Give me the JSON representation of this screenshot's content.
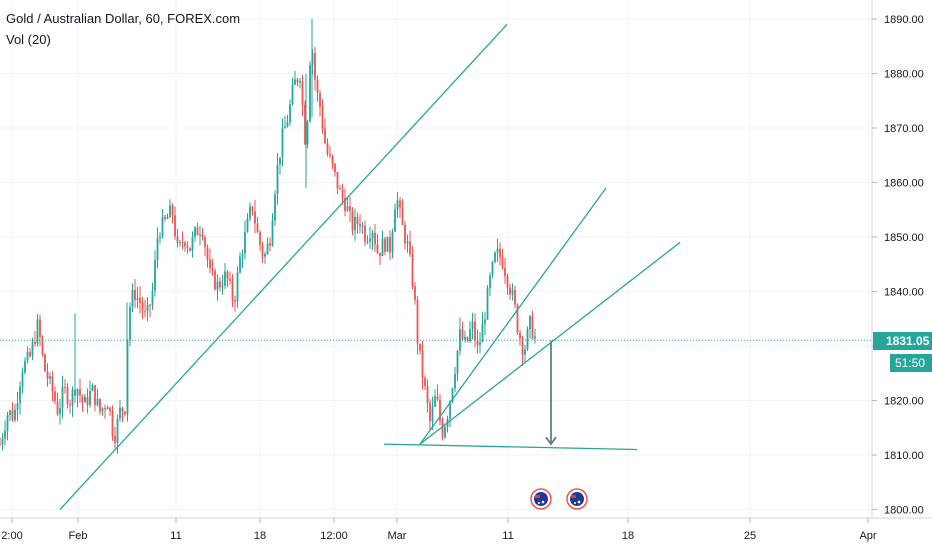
{
  "header": {
    "symbol": "Gold / Australian Dollar, 60, FOREX.com",
    "indicator": "Vol (20)"
  },
  "price_axis": {
    "ticks": [
      "1890.00",
      "1880.00",
      "1870.00",
      "1860.00",
      "1850.00",
      "1840.00",
      "1830.00",
      "1820.00",
      "1810.00",
      "1800.00"
    ],
    "tick_values": [
      1890,
      1880,
      1870,
      1860,
      1850,
      1840,
      1830,
      1820,
      1810,
      1800
    ],
    "current_price": "1831.05",
    "countdown": "51:50"
  },
  "time_axis": {
    "ticks": [
      "2:00",
      "Feb",
      "11",
      "18",
      "12:00",
      "Mar",
      "11",
      "18",
      "25",
      "Apr"
    ]
  },
  "colors": {
    "up": "#26a69a",
    "down": "#ef5350",
    "trendline": "#26a69a",
    "arrow": "#607d8b",
    "price_line": "#26a69a",
    "axis_text": "#131722"
  },
  "icons": [
    "event-australia-flag-icon",
    "event-australia-flag-icon"
  ],
  "chart_data": {
    "type": "candlestick",
    "title": "Gold / Australian Dollar, 60, FOREX.com",
    "ylim": [
      1799,
      1893
    ],
    "ylabel": "",
    "xlabel": "",
    "last_price": 1831.05,
    "path": [
      [
        0,
        1812
      ],
      [
        8,
        1818
      ],
      [
        14,
        1817
      ],
      [
        22,
        1826
      ],
      [
        30,
        1828
      ],
      [
        38,
        1834
      ],
      [
        44,
        1826
      ],
      [
        52,
        1822
      ],
      [
        58,
        1818
      ],
      [
        64,
        1822
      ],
      [
        70,
        1820
      ],
      [
        76,
        1823
      ],
      [
        84,
        1819
      ],
      [
        92,
        1822
      ],
      [
        100,
        1818
      ],
      [
        108,
        1820
      ],
      [
        114,
        1813
      ],
      [
        120,
        1818
      ],
      [
        126,
        1819
      ],
      [
        128,
        1836
      ],
      [
        134,
        1840
      ],
      [
        140,
        1838
      ],
      [
        146,
        1835
      ],
      [
        152,
        1839
      ],
      [
        158,
        1851
      ],
      [
        166,
        1853
      ],
      [
        172,
        1855
      ],
      [
        178,
        1847
      ],
      [
        184,
        1850
      ],
      [
        190,
        1848
      ],
      [
        196,
        1851
      ],
      [
        202,
        1852
      ],
      [
        210,
        1843
      ],
      [
        218,
        1841
      ],
      [
        226,
        1843
      ],
      [
        234,
        1838
      ],
      [
        240,
        1846
      ],
      [
        246,
        1851
      ],
      [
        252,
        1856
      ],
      [
        258,
        1850
      ],
      [
        264,
        1846
      ],
      [
        270,
        1850
      ],
      [
        276,
        1861
      ],
      [
        282,
        1868
      ],
      [
        288,
        1872
      ],
      [
        294,
        1878
      ],
      [
        300,
        1880
      ],
      [
        306,
        1866
      ],
      [
        311,
        1887
      ],
      [
        316,
        1877
      ],
      [
        320,
        1874
      ],
      [
        326,
        1866
      ],
      [
        332,
        1863
      ],
      [
        340,
        1858
      ],
      [
        346,
        1856
      ],
      [
        352,
        1852
      ],
      [
        360,
        1853
      ],
      [
        366,
        1850
      ],
      [
        372,
        1852
      ],
      [
        378,
        1847
      ],
      [
        384,
        1849
      ],
      [
        390,
        1848
      ],
      [
        396,
        1858
      ],
      [
        402,
        1852
      ],
      [
        408,
        1848
      ],
      [
        414,
        1840
      ],
      [
        418,
        1830
      ],
      [
        424,
        1823
      ],
      [
        430,
        1816
      ],
      [
        436,
        1821
      ],
      [
        442,
        1814
      ],
      [
        448,
        1818
      ],
      [
        454,
        1825
      ],
      [
        460,
        1832
      ],
      [
        466,
        1830
      ],
      [
        472,
        1834
      ],
      [
        478,
        1829
      ],
      [
        484,
        1835
      ],
      [
        490,
        1842
      ],
      [
        496,
        1847
      ],
      [
        502,
        1846
      ],
      [
        508,
        1842
      ],
      [
        514,
        1838
      ],
      [
        518,
        1833
      ],
      [
        524,
        1829
      ],
      [
        530,
        1834
      ],
      [
        536,
        1831
      ]
    ],
    "annotations": {
      "trendlines": [
        {
          "x1": 60,
          "p1": 1800,
          "x2": 507,
          "p2": 1889
        },
        {
          "x1": 420,
          "p1": 1812,
          "x2": 606,
          "p2": 1859
        },
        {
          "x1": 420,
          "p1": 1812,
          "x2": 680,
          "p2": 1849
        },
        {
          "x1": 384,
          "p1": 1812,
          "x2": 637,
          "p2": 1811
        }
      ],
      "projection_arrow": {
        "x": 551,
        "from": 1831,
        "to": 1812
      }
    }
  }
}
